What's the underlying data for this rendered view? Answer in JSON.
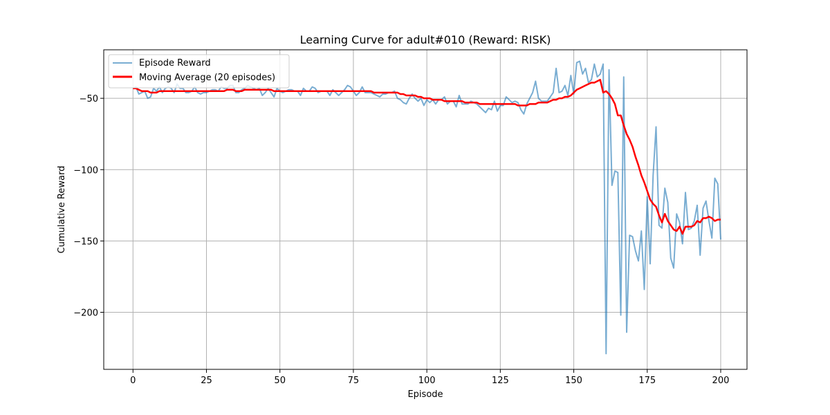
{
  "chart_data": {
    "type": "line",
    "title": "Learning Curve for adult#010 (Reward: RISK)",
    "xlabel": "Episode",
    "ylabel": "Cumulative Reward",
    "xlim": [
      -9.95,
      208.95
    ],
    "ylim": [
      -240.0,
      -16.0
    ],
    "xticks": [
      0,
      25,
      50,
      75,
      100,
      125,
      150,
      175,
      200
    ],
    "yticks": [
      -200,
      -150,
      -100,
      -50
    ],
    "grid": true,
    "legend_position": "top-left",
    "series": [
      {
        "name": "Episode Reward",
        "color": "#1f77b4",
        "alpha": 0.6,
        "x_start": 0,
        "values": [
          -43,
          -42,
          -47,
          -46,
          -45,
          -50,
          -49,
          -43,
          -45,
          -42,
          -46,
          -43,
          -42,
          -43,
          -46,
          -40,
          -43,
          -43,
          -46,
          -46,
          -45,
          -42,
          -46,
          -47,
          -46,
          -46,
          -45,
          -44,
          -44,
          -45,
          -42,
          -43,
          -43,
          -41,
          -41,
          -46,
          -46,
          -44,
          -43,
          -41,
          -42,
          -43,
          -44,
          -43,
          -48,
          -46,
          -43,
          -46,
          -49,
          -43,
          -45,
          -46,
          -45,
          -44,
          -44,
          -45,
          -45,
          -48,
          -43,
          -45,
          -45,
          -42,
          -43,
          -46,
          -45,
          -45,
          -45,
          -48,
          -44,
          -46,
          -48,
          -46,
          -44,
          -41,
          -42,
          -45,
          -48,
          -46,
          -42,
          -46,
          -46,
          -46,
          -47,
          -48,
          -49,
          -47,
          -47,
          -46,
          -46,
          -45,
          -50,
          -51,
          -53,
          -54,
          -50,
          -47,
          -50,
          -52,
          -50,
          -55,
          -51,
          -53,
          -51,
          -54,
          -51,
          -51,
          -49,
          -54,
          -52,
          -52,
          -56,
          -48,
          -54,
          -54,
          -54,
          -52,
          -53,
          -54,
          -56,
          -58,
          -60,
          -57,
          -58,
          -52,
          -59,
          -55,
          -55,
          -49,
          -51,
          -53,
          -52,
          -53,
          -58,
          -61,
          -54,
          -50,
          -46,
          -38,
          -50,
          -52,
          -52,
          -52,
          -49,
          -46,
          -29,
          -46,
          -45,
          -41,
          -48,
          -34,
          -47,
          -25,
          -24,
          -33,
          -29,
          -39,
          -37,
          -26,
          -35,
          -33,
          -26,
          -229,
          -30,
          -111,
          -101,
          -102,
          -202,
          -35,
          -214,
          -146,
          -147,
          -157,
          -164,
          -143,
          -184,
          -119,
          -166,
          -104,
          -70,
          -139,
          -141,
          -113,
          -123,
          -162,
          -169,
          -131,
          -137,
          -152,
          -116,
          -142,
          -141,
          -136,
          -125,
          -160,
          -127,
          -122,
          -136,
          -148,
          -106,
          -110,
          -149
        ]
      },
      {
        "name": "Moving Average (20 episodes)",
        "color": "#ff0000",
        "x_start": 0,
        "values": [
          -43,
          -43,
          -44,
          -45,
          -45,
          -45,
          -46,
          -46,
          -46,
          -45,
          -45,
          -45,
          -45,
          -45,
          -45,
          -45,
          -45,
          -45,
          -45,
          -45,
          -45,
          -45,
          -45,
          -45,
          -45,
          -45,
          -45,
          -45,
          -45,
          -45,
          -45,
          -45,
          -44,
          -44,
          -44,
          -45,
          -45,
          -45,
          -44,
          -44,
          -44,
          -44,
          -44,
          -44,
          -44,
          -44,
          -44,
          -44,
          -45,
          -45,
          -45,
          -45,
          -45,
          -45,
          -45,
          -45,
          -45,
          -45,
          -45,
          -45,
          -45,
          -45,
          -45,
          -45,
          -45,
          -45,
          -45,
          -45,
          -45,
          -45,
          -45,
          -45,
          -45,
          -45,
          -45,
          -45,
          -45,
          -45,
          -45,
          -45,
          -45,
          -45,
          -46,
          -46,
          -46,
          -46,
          -46,
          -46,
          -46,
          -46,
          -46,
          -47,
          -47,
          -48,
          -48,
          -48,
          -48,
          -49,
          -49,
          -50,
          -50,
          -50,
          -51,
          -51,
          -51,
          -51,
          -52,
          -52,
          -52,
          -52,
          -52,
          -52,
          -52,
          -53,
          -53,
          -53,
          -53,
          -53,
          -54,
          -54,
          -54,
          -54,
          -54,
          -54,
          -54,
          -54,
          -54,
          -54,
          -54,
          -54,
          -54,
          -55,
          -55,
          -55,
          -55,
          -54,
          -54,
          -54,
          -53,
          -53,
          -53,
          -53,
          -52,
          -51,
          -51,
          -50,
          -50,
          -49,
          -49,
          -48,
          -46,
          -44,
          -43,
          -42,
          -41,
          -40,
          -39,
          -39,
          -38,
          -37,
          -46,
          -45,
          -47,
          -50,
          -54,
          -62,
          -62,
          -69,
          -75,
          -79,
          -84,
          -91,
          -97,
          -104,
          -109,
          -115,
          -121,
          -124,
          -126,
          -132,
          -137,
          -131,
          -136,
          -139,
          -142,
          -143,
          -140,
          -145,
          -140,
          -140,
          -140,
          -139,
          -136,
          -137,
          -134,
          -134,
          -133,
          -134,
          -136,
          -135,
          -135
        ]
      }
    ]
  }
}
